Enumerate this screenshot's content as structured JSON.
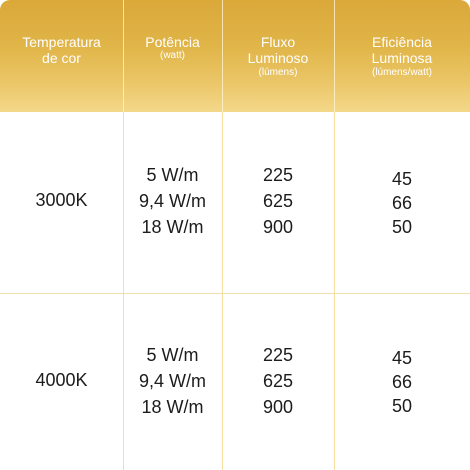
{
  "header": {
    "col1": {
      "title": "Temperatura\nde cor",
      "subtitle": ""
    },
    "col2": {
      "title": "Potência",
      "subtitle": "(watt)"
    },
    "col3": {
      "title": "Fluxo\nLuminoso",
      "subtitle": "(lúmens)"
    },
    "col4": {
      "title": "Eficiência\nLuminosa",
      "subtitle": "(lúmens/watt)"
    }
  },
  "rows": [
    {
      "temperature": "3000K",
      "power": [
        "5 W/m",
        "9,4 W/m",
        "18 W/m"
      ],
      "flux": [
        "225",
        "625",
        "900"
      ],
      "efficiency": [
        "45",
        "66",
        "50"
      ]
    },
    {
      "temperature": "4000K",
      "power": [
        "5 W/m",
        "9,4 W/m",
        "18 W/m"
      ],
      "flux": [
        "225",
        "625",
        "900"
      ],
      "efficiency": [
        "45",
        "66",
        "50"
      ]
    }
  ],
  "colors": {
    "header_gradient_top": "#dba83a",
    "header_gradient_bottom": "#f3d88a",
    "grid_line": "#f1dfac"
  }
}
